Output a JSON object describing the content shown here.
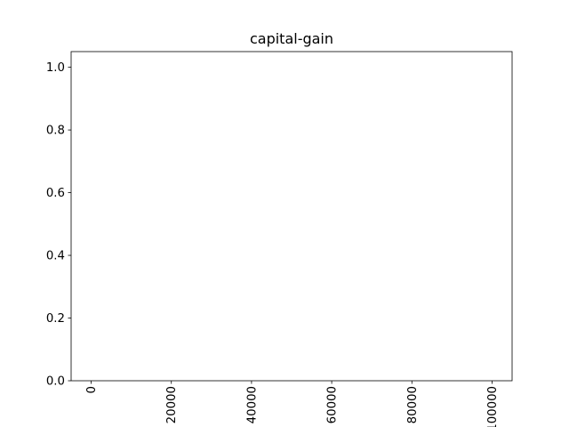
{
  "chart_data": {
    "type": "bar",
    "title": "capital-gain",
    "xlabel": "",
    "ylabel": "",
    "xlim": [
      -5000,
      105000
    ],
    "ylim": [
      0,
      1.05
    ],
    "x_ticks": [
      0,
      20000,
      40000,
      60000,
      80000,
      100000
    ],
    "x_tick_labels": [
      "0",
      "20000",
      "40000",
      "60000",
      "80000",
      "100000"
    ],
    "y_ticks": [
      0.0,
      0.2,
      0.4,
      0.6,
      0.8,
      1.0
    ],
    "y_tick_labels": [
      "0.0",
      "0.2",
      "0.4",
      "0.6",
      "0.8",
      "1.0"
    ],
    "x_tick_rotation_deg": 90,
    "grid": false,
    "series": [],
    "colors": {
      "axes": "#000000",
      "background": "#ffffff"
    }
  }
}
